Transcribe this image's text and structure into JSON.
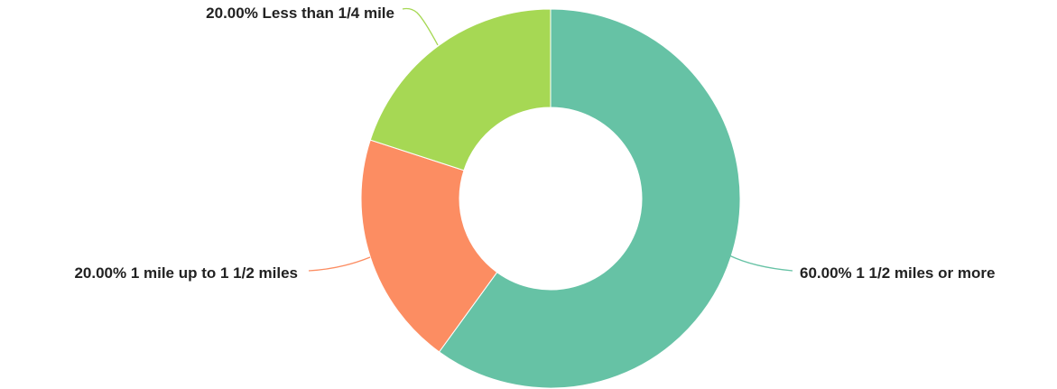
{
  "chart_data": {
    "type": "pie",
    "variant": "donut",
    "categories": [
      "1 1/2 miles or more",
      "1 mile up to 1 1/2 miles",
      "Less than 1/4 mile"
    ],
    "values": [
      60.0,
      20.0,
      20.0
    ],
    "colors": [
      "#66c2a5",
      "#fc8d62",
      "#a6d854"
    ],
    "labels": [
      "60.00% 1 1/2 miles or more",
      "20.00% 1 mile up to 1 1/2 miles",
      "20.00% Less than 1/4 mile"
    ],
    "title": "",
    "legend": "none"
  }
}
